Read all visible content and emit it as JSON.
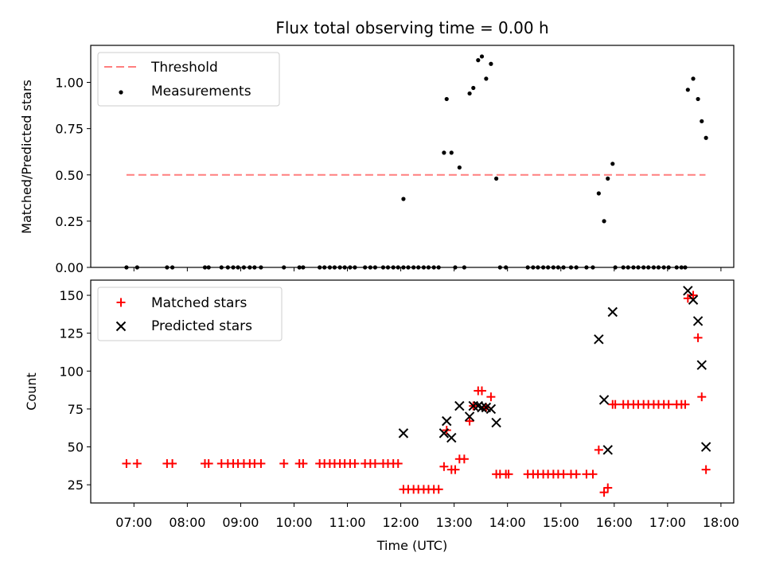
{
  "chart_data": [
    {
      "type": "scatter",
      "title": "Flux total observing time = 0.00 h",
      "ylabel": "Matched/Predicted stars",
      "xlabel": "",
      "ylim": [
        0,
        1.2
      ],
      "yticks": [
        "0.00",
        "0.25",
        "0.50",
        "0.75",
        "1.00"
      ],
      "ytick_values": [
        0,
        0.25,
        0.5,
        0.75,
        1.0
      ],
      "legend_position": "top-left",
      "threshold": {
        "name": "Threshold",
        "value": 0.5,
        "x_start": 6.86,
        "x_end": 17.71,
        "color": "#ff7f7f"
      },
      "series": [
        {
          "name": "Measurements",
          "color": "#000000",
          "points": [
            [
              6.86,
              0
            ],
            [
              7.06,
              0
            ],
            [
              7.62,
              0
            ],
            [
              7.72,
              0
            ],
            [
              8.33,
              0
            ],
            [
              8.4,
              0
            ],
            [
              8.64,
              0
            ],
            [
              8.76,
              0
            ],
            [
              8.86,
              0
            ],
            [
              8.95,
              0
            ],
            [
              9.06,
              0
            ],
            [
              9.17,
              0
            ],
            [
              9.26,
              0
            ],
            [
              9.38,
              0
            ],
            [
              9.81,
              0
            ],
            [
              10.1,
              0
            ],
            [
              10.17,
              0
            ],
            [
              10.48,
              0
            ],
            [
              10.57,
              0
            ],
            [
              10.67,
              0
            ],
            [
              10.76,
              0
            ],
            [
              10.86,
              0
            ],
            [
              10.95,
              0
            ],
            [
              11.05,
              0
            ],
            [
              11.14,
              0
            ],
            [
              11.33,
              0
            ],
            [
              11.43,
              0
            ],
            [
              11.52,
              0
            ],
            [
              11.67,
              0
            ],
            [
              11.76,
              0
            ],
            [
              11.86,
              0
            ],
            [
              11.95,
              0
            ],
            [
              12.05,
              0.37
            ],
            [
              12.05,
              0
            ],
            [
              12.14,
              0
            ],
            [
              12.24,
              0
            ],
            [
              12.33,
              0
            ],
            [
              12.43,
              0
            ],
            [
              12.52,
              0
            ],
            [
              12.62,
              0
            ],
            [
              12.71,
              0
            ],
            [
              12.81,
              0.62
            ],
            [
              12.86,
              0.91
            ],
            [
              12.95,
              0.62
            ],
            [
              13.02,
              0
            ],
            [
              13.1,
              0.54
            ],
            [
              13.19,
              0
            ],
            [
              13.29,
              0.94
            ],
            [
              13.36,
              0.97
            ],
            [
              13.45,
              1.12
            ],
            [
              13.52,
              1.14
            ],
            [
              13.6,
              1.02
            ],
            [
              13.69,
              1.1
            ],
            [
              13.79,
              0.48
            ],
            [
              13.86,
              0
            ],
            [
              13.97,
              0
            ],
            [
              14.38,
              0
            ],
            [
              14.48,
              0
            ],
            [
              14.57,
              0
            ],
            [
              14.67,
              0
            ],
            [
              14.76,
              0
            ],
            [
              14.86,
              0
            ],
            [
              14.95,
              0
            ],
            [
              15.05,
              0
            ],
            [
              15.19,
              0
            ],
            [
              15.29,
              0
            ],
            [
              15.48,
              0
            ],
            [
              15.6,
              0
            ],
            [
              15.71,
              0.4
            ],
            [
              15.81,
              0.25
            ],
            [
              15.88,
              0.48
            ],
            [
              15.97,
              0.56
            ],
            [
              16.02,
              0
            ],
            [
              16.17,
              0
            ],
            [
              16.26,
              0
            ],
            [
              16.36,
              0
            ],
            [
              16.45,
              0
            ],
            [
              16.55,
              0
            ],
            [
              16.64,
              0
            ],
            [
              16.74,
              0
            ],
            [
              16.83,
              0
            ],
            [
              16.93,
              0
            ],
            [
              17.02,
              0
            ],
            [
              17.17,
              0
            ],
            [
              17.26,
              0
            ],
            [
              17.33,
              0
            ],
            [
              17.38,
              0.96
            ],
            [
              17.48,
              1.02
            ],
            [
              17.57,
              0.91
            ],
            [
              17.64,
              0.79
            ],
            [
              17.72,
              0.7
            ]
          ]
        }
      ]
    },
    {
      "type": "scatter",
      "title": "",
      "ylabel": "Count",
      "xlabel": "Time (UTC)",
      "ylim": [
        13,
        160
      ],
      "yticks": [
        "25",
        "50",
        "75",
        "100",
        "125",
        "150"
      ],
      "ytick_values": [
        25,
        50,
        75,
        100,
        125,
        150
      ],
      "xlim": [
        6.19,
        18.24
      ],
      "xticks": [
        "07:00",
        "08:00",
        "09:00",
        "10:00",
        "11:00",
        "12:00",
        "13:00",
        "14:00",
        "15:00",
        "16:00",
        "17:00",
        "18:00"
      ],
      "xtick_values": [
        7,
        8,
        9,
        10,
        11,
        12,
        13,
        14,
        15,
        16,
        17,
        18
      ],
      "legend_position": "top-left",
      "series": [
        {
          "name": "Matched stars",
          "color": "#ff0000",
          "marker": "+",
          "points": [
            [
              6.86,
              39
            ],
            [
              7.06,
              39
            ],
            [
              7.62,
              39
            ],
            [
              7.72,
              39
            ],
            [
              8.33,
              39
            ],
            [
              8.4,
              39
            ],
            [
              8.64,
              39
            ],
            [
              8.76,
              39
            ],
            [
              8.86,
              39
            ],
            [
              8.95,
              39
            ],
            [
              9.06,
              39
            ],
            [
              9.17,
              39
            ],
            [
              9.26,
              39
            ],
            [
              9.38,
              39
            ],
            [
              9.81,
              39
            ],
            [
              10.1,
              39
            ],
            [
              10.17,
              39
            ],
            [
              10.48,
              39
            ],
            [
              10.57,
              39
            ],
            [
              10.67,
              39
            ],
            [
              10.76,
              39
            ],
            [
              10.86,
              39
            ],
            [
              10.95,
              39
            ],
            [
              11.05,
              39
            ],
            [
              11.14,
              39
            ],
            [
              11.33,
              39
            ],
            [
              11.43,
              39
            ],
            [
              11.52,
              39
            ],
            [
              11.67,
              39
            ],
            [
              11.76,
              39
            ],
            [
              11.86,
              39
            ],
            [
              11.95,
              39
            ],
            [
              12.05,
              22
            ],
            [
              12.14,
              22
            ],
            [
              12.24,
              22
            ],
            [
              12.33,
              22
            ],
            [
              12.43,
              22
            ],
            [
              12.52,
              22
            ],
            [
              12.62,
              22
            ],
            [
              12.71,
              22
            ],
            [
              12.81,
              37
            ],
            [
              12.86,
              61
            ],
            [
              12.95,
              35
            ],
            [
              13.02,
              35
            ],
            [
              13.1,
              42
            ],
            [
              13.19,
              42
            ],
            [
              13.29,
              67
            ],
            [
              13.36,
              77
            ],
            [
              13.45,
              87
            ],
            [
              13.52,
              87
            ],
            [
              13.6,
              76
            ],
            [
              13.69,
              83
            ],
            [
              13.79,
              32
            ],
            [
              13.86,
              32
            ],
            [
              13.97,
              32
            ],
            [
              14.02,
              32
            ],
            [
              14.38,
              32
            ],
            [
              14.48,
              32
            ],
            [
              14.57,
              32
            ],
            [
              14.67,
              32
            ],
            [
              14.76,
              32
            ],
            [
              14.86,
              32
            ],
            [
              14.95,
              32
            ],
            [
              15.05,
              32
            ],
            [
              15.19,
              32
            ],
            [
              15.29,
              32
            ],
            [
              15.48,
              32
            ],
            [
              15.6,
              32
            ],
            [
              15.71,
              48
            ],
            [
              15.81,
              20
            ],
            [
              15.88,
              23
            ],
            [
              15.97,
              78
            ],
            [
              16.02,
              78
            ],
            [
              16.17,
              78
            ],
            [
              16.26,
              78
            ],
            [
              16.36,
              78
            ],
            [
              16.45,
              78
            ],
            [
              16.55,
              78
            ],
            [
              16.64,
              78
            ],
            [
              16.74,
              78
            ],
            [
              16.83,
              78
            ],
            [
              16.93,
              78
            ],
            [
              17.02,
              78
            ],
            [
              17.17,
              78
            ],
            [
              17.26,
              78
            ],
            [
              17.33,
              78
            ],
            [
              17.38,
              148
            ],
            [
              17.48,
              150
            ],
            [
              17.57,
              122
            ],
            [
              17.64,
              83
            ],
            [
              17.72,
              35
            ]
          ]
        },
        {
          "name": "Predicted stars",
          "color": "#000000",
          "marker": "x",
          "points": [
            [
              12.05,
              59
            ],
            [
              12.81,
              59
            ],
            [
              12.86,
              67
            ],
            [
              12.95,
              56
            ],
            [
              13.1,
              77
            ],
            [
              13.29,
              70
            ],
            [
              13.36,
              77
            ],
            [
              13.45,
              77
            ],
            [
              13.52,
              76
            ],
            [
              13.6,
              76
            ],
            [
              13.69,
              75
            ],
            [
              13.79,
              66
            ],
            [
              15.71,
              121
            ],
            [
              15.81,
              81
            ],
            [
              15.88,
              48
            ],
            [
              15.97,
              139
            ],
            [
              17.38,
              153
            ],
            [
              17.48,
              147
            ],
            [
              17.57,
              133
            ],
            [
              17.64,
              104
            ],
            [
              17.72,
              50
            ]
          ]
        }
      ]
    }
  ]
}
